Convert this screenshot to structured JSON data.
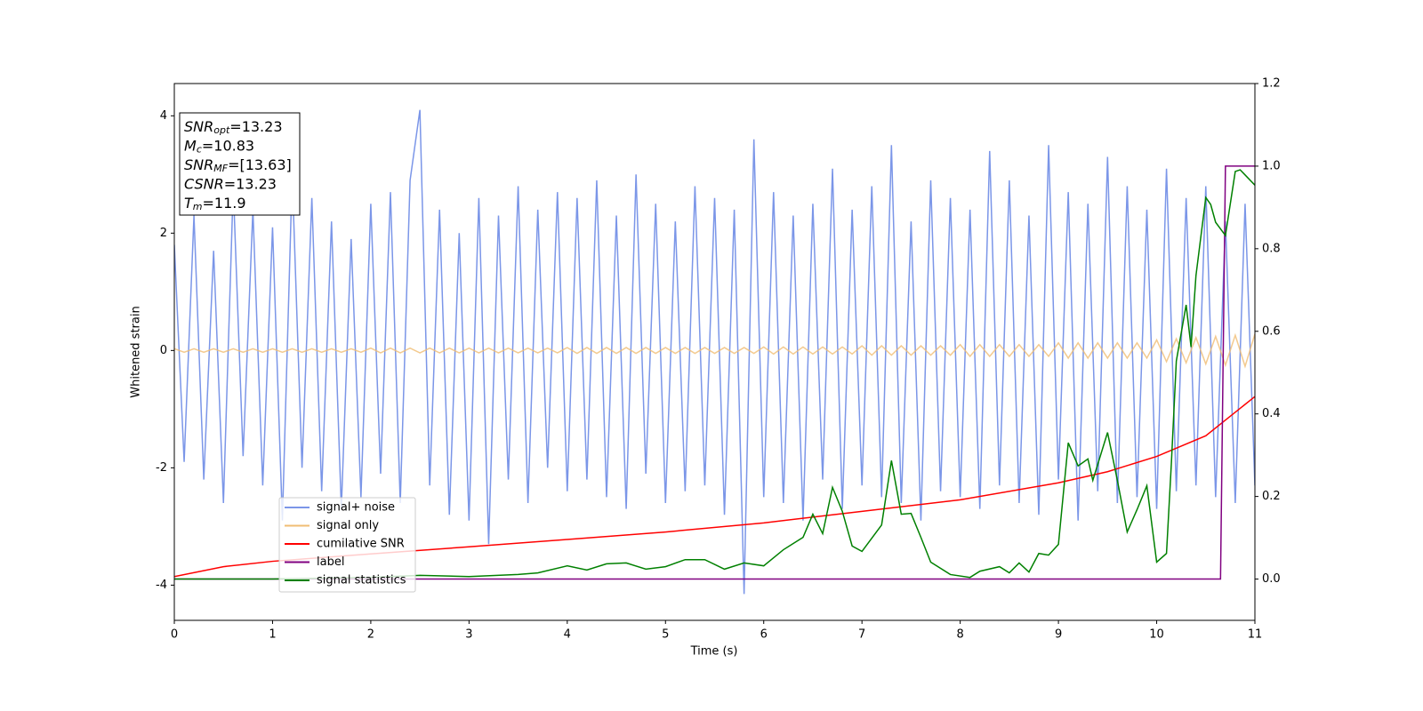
{
  "chart_data": {
    "type": "line",
    "x_label": "Time (s)",
    "y_label": "Whitened strain",
    "xlim": [
      0,
      11
    ],
    "ylim": [
      -4.6,
      4.55
    ],
    "y2lim": [
      -0.1,
      1.2
    ],
    "xticks": [
      0,
      1,
      2,
      3,
      4,
      5,
      6,
      7,
      8,
      9,
      10,
      11
    ],
    "yticks": [
      -4,
      -2,
      0,
      2,
      4
    ],
    "y2ticks": [
      {
        "value": 0,
        "label": "0.0"
      },
      0.2,
      0.4,
      0.6,
      0.8,
      {
        "value": 1,
        "label": "1.0"
      },
      1.2
    ],
    "grid": false,
    "legend": "lower left",
    "annotation": [
      {
        "italic": "SNR",
        "sub": "opt",
        "text": "=13.23"
      },
      {
        "italic": "M",
        "sub": "c",
        "text": "=10.83"
      },
      {
        "italic": "SNR",
        "sub": "MF",
        "text": "=[13.63]"
      },
      {
        "italic": "CSNR",
        "text": "=13.23"
      },
      {
        "italic": "T",
        "sub": "m",
        "text": "=11.9"
      }
    ],
    "x": [
      0,
      0.1,
      0.2,
      0.3,
      0.4,
      0.5,
      0.6,
      0.7,
      0.8,
      0.9,
      1,
      1.1,
      1.2,
      1.3,
      1.4,
      1.5,
      1.6,
      1.7,
      1.8,
      1.9,
      2,
      2.1,
      2.2,
      2.3,
      2.4,
      2.5,
      2.6,
      2.7,
      2.8,
      2.9,
      3,
      3.1,
      3.2,
      3.3,
      3.4,
      3.5,
      3.6,
      3.7,
      3.8,
      3.9,
      4,
      4.1,
      4.2,
      4.3,
      4.4,
      4.5,
      4.6,
      4.7,
      4.8,
      4.9,
      5,
      5.1,
      5.2,
      5.3,
      5.4,
      5.5,
      5.6,
      5.7,
      5.8,
      5.9,
      6,
      6.1,
      6.2,
      6.3,
      6.4,
      6.5,
      6.6,
      6.7,
      6.8,
      6.9,
      7,
      7.1,
      7.2,
      7.3,
      7.4,
      7.5,
      7.6,
      7.7,
      7.8,
      7.9,
      8,
      8.1,
      8.2,
      8.3,
      8.4,
      8.5,
      8.6,
      8.7,
      8.8,
      8.9,
      9,
      9.1,
      9.2,
      9.3,
      9.4,
      9.5,
      9.6,
      9.7,
      9.8,
      9.9,
      10,
      10.1,
      10.2,
      10.3,
      10.4,
      10.5,
      10.6,
      10.7,
      10.8,
      10.9,
      11
    ],
    "series": [
      {
        "name": "signal+ noise",
        "color": "#7b96e8",
        "axis": "y",
        "values": [
          1.8,
          -1.9,
          2.3,
          -2.2,
          1.7,
          -2.6,
          2.8,
          -1.8,
          2.4,
          -2.3,
          2.1,
          -2.9,
          3.0,
          -2.0,
          2.6,
          -2.4,
          2.2,
          -2.7,
          1.9,
          -2.5,
          2.5,
          -2.1,
          2.7,
          -2.6,
          2.9,
          4.1,
          -2.3,
          2.4,
          -2.8,
          2.0,
          -2.9,
          2.6,
          -3.3,
          2.3,
          -2.2,
          2.8,
          -2.6,
          2.4,
          -2.0,
          2.7,
          -2.4,
          2.6,
          -2.2,
          2.9,
          -2.5,
          2.3,
          -2.7,
          3.0,
          -2.1,
          2.5,
          -2.6,
          2.2,
          -2.4,
          2.8,
          -2.3,
          2.6,
          -2.8,
          2.4,
          -4.15,
          3.6,
          -2.5,
          2.7,
          -2.6,
          2.3,
          -2.9,
          2.5,
          -2.2,
          3.1,
          -2.7,
          2.4,
          -2.3,
          2.8,
          -2.5,
          3.5,
          -2.6,
          2.2,
          -2.9,
          2.9,
          -2.4,
          2.6,
          -2.5,
          2.4,
          -2.7,
          3.4,
          -2.3,
          2.9,
          -2.6,
          2.3,
          -2.8,
          3.5,
          -2.2,
          2.7,
          -2.9,
          2.5,
          -2.4,
          3.3,
          -2.6,
          2.8,
          -2.5,
          2.4,
          -2.7,
          3.1,
          -2.4,
          2.6,
          -2.3,
          2.8,
          -2.5,
          2.2,
          -2.6,
          2.5,
          -2.3
        ]
      },
      {
        "name": "signal only",
        "color": "#f0bd73",
        "axis": "y",
        "values": [
          0.03,
          -0.03,
          0.03,
          -0.03,
          0.03,
          -0.03,
          0.03,
          -0.03,
          0.03,
          -0.03,
          0.03,
          -0.03,
          0.03,
          -0.03,
          0.03,
          -0.03,
          0.03,
          -0.03,
          0.03,
          -0.03,
          0.04,
          -0.04,
          0.04,
          -0.04,
          0.04,
          -0.04,
          0.04,
          -0.04,
          0.04,
          -0.04,
          0.04,
          -0.04,
          0.04,
          -0.04,
          0.04,
          -0.04,
          0.04,
          -0.04,
          0.04,
          -0.04,
          0.05,
          -0.05,
          0.05,
          -0.05,
          0.05,
          -0.05,
          0.05,
          -0.05,
          0.05,
          -0.05,
          0.05,
          -0.05,
          0.05,
          -0.05,
          0.05,
          -0.05,
          0.05,
          -0.05,
          0.05,
          -0.05,
          0.06,
          -0.06,
          0.06,
          -0.06,
          0.06,
          -0.06,
          0.06,
          -0.06,
          0.06,
          -0.06,
          0.08,
          -0.08,
          0.08,
          -0.08,
          0.08,
          -0.08,
          0.08,
          -0.08,
          0.08,
          -0.08,
          0.1,
          -0.1,
          0.1,
          -0.1,
          0.1,
          -0.1,
          0.1,
          -0.1,
          0.1,
          -0.1,
          0.13,
          -0.13,
          0.13,
          -0.13,
          0.13,
          -0.13,
          0.13,
          -0.13,
          0.13,
          -0.13,
          0.18,
          -0.19,
          0.2,
          -0.21,
          0.22,
          -0.23,
          0.24,
          -0.25,
          0.26,
          -0.27,
          0.28
        ]
      },
      {
        "name": "cumilative SNR",
        "color": "#ff0000",
        "axis": "y2",
        "x": [
          0,
          0.5,
          1,
          2,
          3,
          4,
          5,
          6,
          7,
          8,
          9,
          9.5,
          10,
          10.5,
          11
        ],
        "values": [
          0.006,
          0.03,
          0.043,
          0.061,
          0.078,
          0.096,
          0.114,
          0.136,
          0.164,
          0.192,
          0.233,
          0.26,
          0.297,
          0.347,
          0.442
        ]
      },
      {
        "name": "label",
        "color": "#800080",
        "axis": "y2",
        "x": [
          0,
          10.65,
          10.7,
          11
        ],
        "values": [
          0,
          0,
          1,
          1
        ]
      },
      {
        "name": "signal statistics",
        "color": "#008000",
        "axis": "y2",
        "x": [
          0,
          1,
          2,
          2.5,
          3,
          3.5,
          3.7,
          4,
          4.2,
          4.4,
          4.6,
          4.8,
          5,
          5.2,
          5.4,
          5.6,
          5.8,
          6,
          6.2,
          6.4,
          6.5,
          6.6,
          6.7,
          6.8,
          6.9,
          7,
          7.1,
          7.2,
          7.3,
          7.4,
          7.5,
          7.6,
          7.7,
          7.9,
          8.1,
          8.2,
          8.4,
          8.5,
          8.6,
          8.7,
          8.8,
          8.9,
          9,
          9.1,
          9.2,
          9.3,
          9.35,
          9.5,
          9.6,
          9.7,
          9.8,
          9.9,
          10,
          10.1,
          10.15,
          10.2,
          10.3,
          10.35,
          10.4,
          10.5,
          10.55,
          10.6,
          10.7,
          10.8,
          10.85,
          11
        ],
        "values": [
          0,
          0,
          0.004,
          0.009,
          0.006,
          0.011,
          0.015,
          0.032,
          0.022,
          0.037,
          0.039,
          0.024,
          0.03,
          0.047,
          0.047,
          0.024,
          0.039,
          0.032,
          0.071,
          0.101,
          0.157,
          0.11,
          0.222,
          0.164,
          0.08,
          0.067,
          0.099,
          0.131,
          0.287,
          0.157,
          0.159,
          0.101,
          0.041,
          0.011,
          0.004,
          0.019,
          0.03,
          0.015,
          0.039,
          0.017,
          0.062,
          0.058,
          0.084,
          0.33,
          0.274,
          0.291,
          0.239,
          0.355,
          0.239,
          0.114,
          0.168,
          0.226,
          0.041,
          0.062,
          0.282,
          0.528,
          0.664,
          0.562,
          0.735,
          0.924,
          0.907,
          0.864,
          0.832,
          0.987,
          0.991,
          0.954
        ]
      }
    ]
  }
}
